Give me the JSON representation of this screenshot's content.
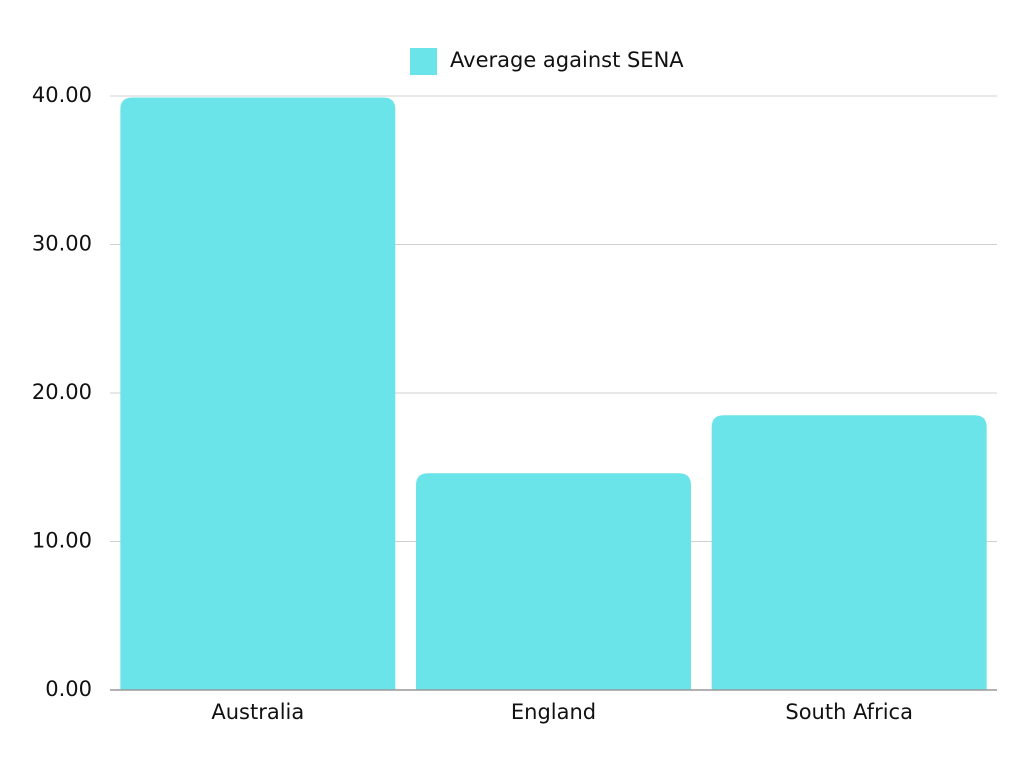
{
  "chart_data": {
    "type": "bar",
    "categories": [
      "Australia",
      "England",
      "South Africa"
    ],
    "series": [
      {
        "name": "Average against SENA",
        "color": "#6ae4e8",
        "values": [
          39.9,
          14.6,
          18.5
        ]
      }
    ],
    "ylim": [
      0,
      40
    ],
    "yticks": [
      {
        "value": 0,
        "label": "0.00"
      },
      {
        "value": 10,
        "label": "10.00"
      },
      {
        "value": 20,
        "label": "20.00"
      },
      {
        "value": 30,
        "label": "30.00"
      },
      {
        "value": 40,
        "label": "40.00"
      }
    ],
    "grid": true,
    "legend": "top"
  }
}
